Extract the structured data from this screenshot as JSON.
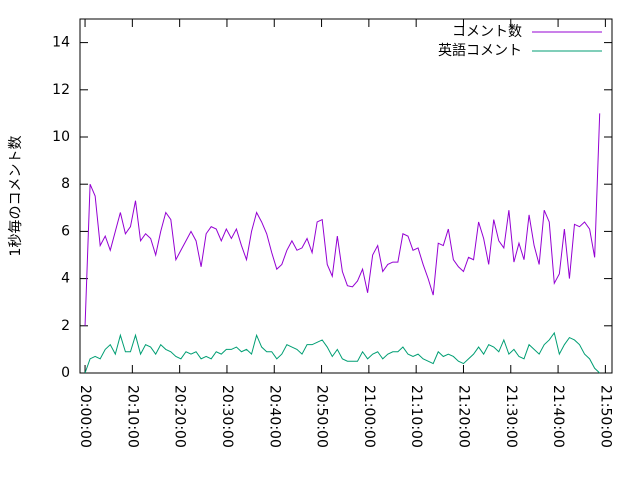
{
  "chart_data": {
    "type": "line",
    "ylabel": "1秒毎のコメント数",
    "x": [
      "20:00:00",
      "20:01:04",
      "20:02:08",
      "20:03:12",
      "20:04:16",
      "20:05:20",
      "20:06:24",
      "20:07:28",
      "20:08:32",
      "20:09:36",
      "20:10:40",
      "20:11:44",
      "20:12:48",
      "20:13:52",
      "20:14:56",
      "20:16:00",
      "20:17:04",
      "20:18:08",
      "20:19:12",
      "20:20:16",
      "20:21:20",
      "20:22:24",
      "20:23:28",
      "20:24:32",
      "20:25:36",
      "20:26:40",
      "20:27:44",
      "20:28:48",
      "20:29:52",
      "20:30:56",
      "20:32:00",
      "20:33:04",
      "20:34:08",
      "20:35:12",
      "20:36:16",
      "20:37:20",
      "20:38:24",
      "20:39:28",
      "20:40:32",
      "20:41:36",
      "20:42:40",
      "20:43:44",
      "20:44:48",
      "20:45:52",
      "20:46:56",
      "20:48:00",
      "20:49:04",
      "20:50:08",
      "20:51:12",
      "20:52:16",
      "20:53:20",
      "20:54:24",
      "20:55:28",
      "20:56:32",
      "20:57:36",
      "20:58:40",
      "20:59:44",
      "21:00:48",
      "21:01:52",
      "21:02:56",
      "21:04:00",
      "21:05:04",
      "21:06:08",
      "21:07:12",
      "21:08:16",
      "21:09:20",
      "21:10:24",
      "21:11:28",
      "21:12:32",
      "21:13:36",
      "21:14:40",
      "21:15:44",
      "21:16:48",
      "21:17:52",
      "21:18:56",
      "21:20:00",
      "21:21:04",
      "21:22:08",
      "21:23:12",
      "21:24:16",
      "21:25:20",
      "21:26:24",
      "21:27:28",
      "21:28:32",
      "21:29:36",
      "21:30:40",
      "21:31:44",
      "21:32:48",
      "21:33:52",
      "21:34:56",
      "21:36:00",
      "21:37:04",
      "21:38:08",
      "21:39:12",
      "21:40:16",
      "21:41:20",
      "21:42:24",
      "21:43:28",
      "21:44:32",
      "21:45:36",
      "21:46:40",
      "21:47:44",
      "21:48:48"
    ],
    "series": [
      {
        "name": "コメント数",
        "color": "#9400d3",
        "values": [
          2.0,
          8.0,
          7.5,
          5.4,
          5.8,
          5.2,
          6.0,
          6.8,
          5.9,
          6.2,
          7.3,
          5.6,
          5.9,
          5.7,
          5.0,
          6.0,
          6.8,
          6.5,
          4.8,
          5.2,
          5.6,
          6.0,
          5.6,
          4.5,
          5.9,
          6.2,
          6.1,
          5.6,
          6.1,
          5.7,
          6.1,
          5.4,
          4.8,
          6.0,
          6.8,
          6.4,
          5.9,
          5.1,
          4.4,
          4.6,
          5.2,
          5.6,
          5.2,
          5.3,
          5.7,
          5.1,
          6.4,
          6.5,
          4.6,
          4.1,
          5.8,
          4.3,
          3.7,
          3.65,
          3.9,
          4.4,
          3.4,
          5.0,
          5.4,
          4.3,
          4.6,
          4.7,
          4.7,
          5.9,
          5.8,
          5.2,
          5.3,
          4.6,
          4.0,
          3.3,
          5.5,
          5.4,
          6.1,
          4.8,
          4.5,
          4.3,
          4.9,
          4.8,
          6.4,
          5.7,
          4.6,
          6.5,
          5.6,
          5.3,
          6.9,
          4.7,
          5.5,
          4.8,
          6.7,
          5.4,
          4.6,
          6.9,
          6.4,
          3.8,
          4.2,
          6.1,
          4.0,
          6.3,
          6.2,
          6.4,
          6.1,
          4.9,
          11.0
        ]
      },
      {
        "name": "英語コメント",
        "color": "#009e73",
        "values": [
          0.0,
          0.6,
          0.7,
          0.6,
          1.0,
          1.2,
          0.8,
          1.6,
          0.9,
          0.9,
          1.6,
          0.8,
          1.2,
          1.1,
          0.8,
          1.2,
          1.0,
          0.9,
          0.7,
          0.6,
          0.9,
          0.8,
          0.9,
          0.6,
          0.7,
          0.6,
          0.9,
          0.8,
          1.0,
          1.0,
          1.1,
          0.9,
          1.0,
          0.8,
          1.6,
          1.1,
          0.9,
          0.9,
          0.6,
          0.8,
          1.2,
          1.1,
          1.0,
          0.8,
          1.2,
          1.2,
          1.3,
          1.4,
          1.1,
          0.7,
          1.0,
          0.6,
          0.5,
          0.5,
          0.5,
          0.9,
          0.6,
          0.8,
          0.9,
          0.6,
          0.8,
          0.9,
          0.9,
          1.1,
          0.8,
          0.7,
          0.8,
          0.6,
          0.5,
          0.4,
          0.9,
          0.7,
          0.8,
          0.7,
          0.5,
          0.4,
          0.6,
          0.8,
          1.1,
          0.8,
          1.2,
          1.1,
          0.9,
          1.4,
          0.8,
          1.0,
          0.7,
          0.6,
          1.2,
          1.0,
          0.8,
          1.2,
          1.4,
          1.7,
          0.8,
          1.2,
          1.5,
          1.4,
          1.2,
          0.8,
          0.6,
          0.2,
          0.0
        ]
      }
    ],
    "xlim": [
      "19:58:56",
      "21:51:24"
    ],
    "xticks": [
      "20:00:00",
      "20:10:00",
      "20:20:00",
      "20:30:00",
      "20:40:00",
      "20:50:00",
      "21:00:00",
      "21:10:00",
      "21:20:00",
      "21:30:00",
      "21:40:00",
      "21:50:00"
    ],
    "ylim": [
      0,
      15
    ],
    "yticks": [
      0,
      2,
      4,
      6,
      8,
      10,
      12,
      14
    ],
    "legend": "top-right"
  }
}
